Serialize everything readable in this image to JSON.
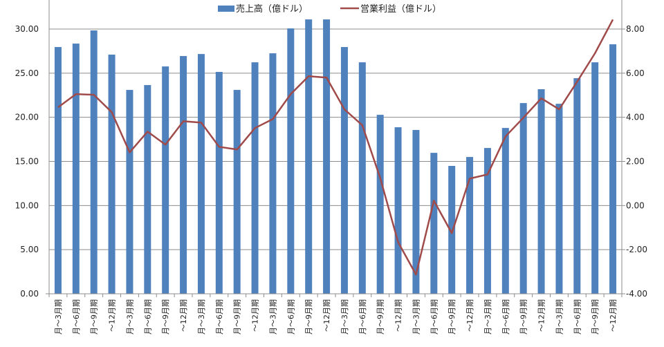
{
  "chart_data": {
    "type": "bar+line",
    "title": "",
    "legend_position": "top",
    "categories": [
      "月～3月期",
      "月～6月期",
      "月～9月期",
      "～12月期",
      "月～3月期",
      "月～6月期",
      "月～9月期",
      "～12月期",
      "月～3月期",
      "月～6月期",
      "月～9月期",
      "～12月期",
      "月～3月期",
      "月～6月期",
      "月～9月期",
      "～12月期",
      "月～3月期",
      "月～6月期",
      "月～9月期",
      "～12月期",
      "月～3月期",
      "月～6月期",
      "月～9月期",
      "～12月期",
      "月～3月期",
      "月～6月期",
      "月～9月期",
      "～12月期",
      "月～3月期",
      "月～6月期",
      "月～9月期",
      "～12月期"
    ],
    "series": [
      {
        "name": "売上高（億ドル）",
        "type": "bar",
        "axis": "left",
        "color": "#4f81bd",
        "values": [
          27.96,
          28.35,
          29.84,
          27.1,
          23.1,
          23.65,
          25.76,
          26.94,
          27.17,
          25.14,
          23.1,
          26.23,
          27.25,
          30.07,
          31.09,
          31.09,
          27.96,
          26.23,
          20.28,
          18.87,
          18.56,
          15.97,
          14.49,
          15.5,
          16.52,
          18.79,
          21.61,
          23.18,
          21.53,
          24.43,
          26.23,
          28.27
        ]
      },
      {
        "name": "営業利益（億ドル）",
        "type": "line",
        "axis": "right",
        "color": "#a04a4a",
        "values": [
          4.45,
          5.05,
          5.02,
          4.23,
          2.41,
          3.35,
          2.76,
          3.82,
          3.76,
          2.66,
          2.54,
          3.51,
          3.92,
          5.05,
          5.86,
          5.8,
          4.36,
          3.64,
          1.25,
          -1.66,
          -3.13,
          0.22,
          -1.25,
          1.22,
          1.41,
          3.13,
          3.98,
          4.86,
          4.36,
          5.61,
          6.9,
          8.43
        ]
      }
    ],
    "left_axis": {
      "ylim": [
        0,
        30
      ],
      "ticks": [
        "0.00",
        "5.00",
        "10.00",
        "15.00",
        "20.00",
        "25.00",
        "30.00"
      ]
    },
    "right_axis": {
      "ylim": [
        -4,
        8
      ],
      "ticks": [
        "-4.00",
        "-2.00",
        "0.00",
        "2.00",
        "4.00",
        "6.00",
        "8.00"
      ],
      "negative_color": "#c00000"
    },
    "grid": true
  }
}
